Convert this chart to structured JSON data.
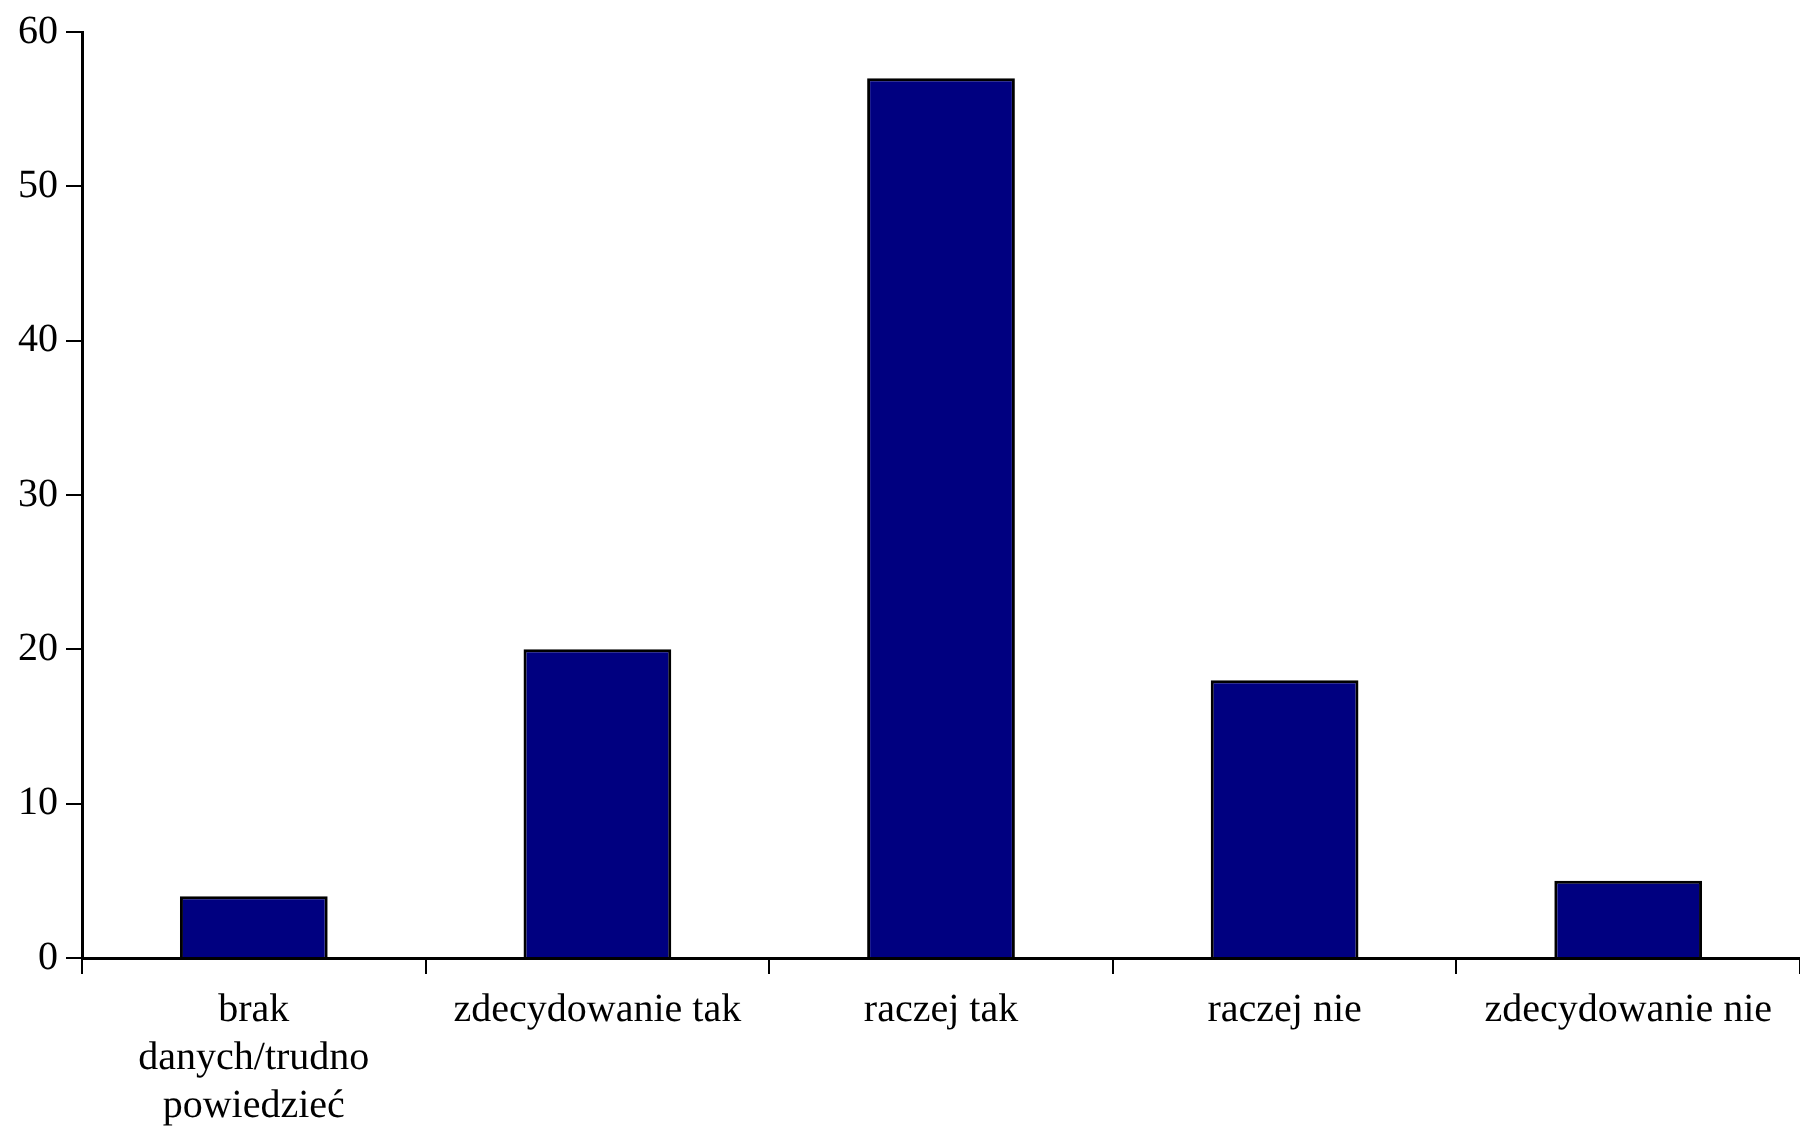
{
  "chart_data": {
    "type": "bar",
    "categories": [
      "brak danych/trudno powiedzieć",
      "zdecydowanie tak",
      "raczej tak",
      "raczej nie",
      "zdecydowanie nie"
    ],
    "values": [
      4,
      20,
      57,
      18,
      5
    ],
    "color": "#000080",
    "ylim": [
      0,
      60
    ],
    "yticks": [
      0,
      10,
      20,
      30,
      40,
      50,
      60
    ],
    "grid": false,
    "legend": false
  }
}
